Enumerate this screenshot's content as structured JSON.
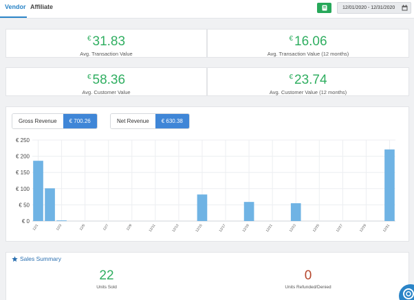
{
  "tabs": [
    {
      "label": "Vendor",
      "active": true
    },
    {
      "label": "Affiliate",
      "active": false
    }
  ],
  "toolbar": {
    "export_icon": "book-icon",
    "date_range": "12/01/2020 - 12/31/2020",
    "calendar_icon": "calendar-icon"
  },
  "stats": [
    {
      "currency": "€",
      "value": "31.83",
      "label": "Avg. Transaction Value"
    },
    {
      "currency": "€",
      "value": "16.06",
      "label": "Avg. Transaction Value (12 months)"
    },
    {
      "currency": "€",
      "value": "58.36",
      "label": "Avg. Customer Value"
    },
    {
      "currency": "€",
      "value": "23.74",
      "label": "Avg. Customer Value (12 months)"
    }
  ],
  "revenue": {
    "gross_label": "Gross Revenue",
    "gross_value": "€ 700.26",
    "net_label": "Net Revenue",
    "net_value": "€ 630.38"
  },
  "chart_data": {
    "type": "bar",
    "title": "",
    "xlabel": "",
    "ylabel": "",
    "ylim": [
      0,
      250
    ],
    "yticks": [
      "€ 0",
      "€ 50",
      "€ 100",
      "€ 150",
      "€ 200",
      "€ 250"
    ],
    "ytick_values": [
      0,
      50,
      100,
      150,
      200,
      250
    ],
    "grid": true,
    "bar_color": "#6fb3e4",
    "x": [
      "12/1",
      "12/2",
      "12/3",
      "12/4",
      "12/5",
      "12/6",
      "12/7",
      "12/8",
      "12/9",
      "12/10",
      "12/11",
      "12/12",
      "12/13",
      "12/14",
      "12/15",
      "12/16",
      "12/17",
      "12/18",
      "12/19",
      "12/20",
      "12/21",
      "12/22",
      "12/23",
      "12/24",
      "12/25",
      "12/26",
      "12/27",
      "12/28",
      "12/29",
      "12/30",
      "12/31"
    ],
    "x_tick_labels": [
      "12/1",
      "12/3",
      "12/5",
      "12/7",
      "12/9",
      "12/11",
      "12/13",
      "12/15",
      "12/17",
      "12/19",
      "12/21",
      "12/23",
      "12/25",
      "12/27",
      "12/29",
      "12/31"
    ],
    "values": [
      186,
      101,
      2,
      0,
      0,
      0,
      0,
      0,
      0,
      0,
      0,
      0,
      0,
      0,
      82,
      0,
      0,
      0,
      59,
      0,
      0,
      0,
      55,
      0,
      0,
      0,
      0,
      0,
      0,
      0,
      221
    ]
  },
  "summary": {
    "title": "Sales Summary",
    "icon": "star-icon",
    "units_sold": "22",
    "units_sold_label": "Units Sold",
    "units_refunded": "0",
    "units_refunded_label": "Units Refunded/Denied"
  },
  "colors": {
    "accent": "#2a84c7",
    "green": "#2fae60",
    "refund": "#b5452b"
  }
}
